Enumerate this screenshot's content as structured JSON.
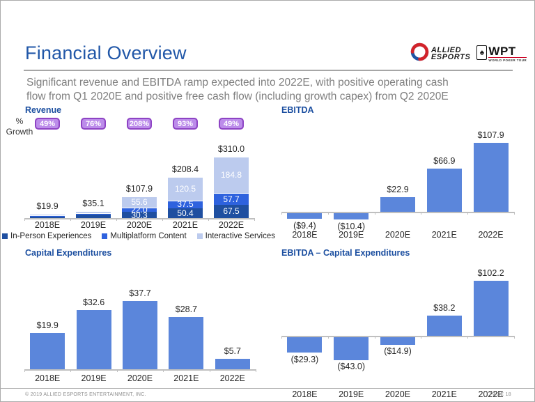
{
  "header": {
    "title": "Financial Overview",
    "subtitle_lines": [
      "Significant revenue and EBITDA ramp expected into 2022E, with positive operating cash",
      "flow from Q1 2020E and positive free cash flow (including growth capex) from Q2 2020E"
    ],
    "logos": {
      "allied_line1": "ALLIED",
      "allied_line2": "ESPORTS",
      "wpt": "WPT",
      "wpt_sub": "WORLD POKER TOUR",
      "spade_icon": "♠"
    }
  },
  "footer": {
    "copyright": "© 2019 ALLIED ESPORTS ENTERTAINMENT, INC.",
    "page": "PAGE 18"
  },
  "colors": {
    "accent_blue_title": "#2157a8",
    "chart_title_blue": "#1c4fa0",
    "single_bar": "#5b86db",
    "stack_dark": "#1f4fa0",
    "stack_mid": "#2e62de",
    "stack_light": "#bccbee",
    "badge_fill": "#bc8cea",
    "badge_border": "#8e44c4",
    "axis_gray": "#bfbfbf"
  },
  "chart_data": [
    {
      "id": "revenue",
      "type": "bar",
      "stacked": true,
      "title": "Revenue",
      "growth_label": "% Growth",
      "growth_badges": [
        "49%",
        "76%",
        "208%",
        "93%",
        "49%"
      ],
      "categories": [
        "2018E",
        "2019E",
        "2020E",
        "2021E",
        "2022E"
      ],
      "series": [
        {
          "name": "In-Person Experiences",
          "color": "#1f4fa0",
          "values": [
            11.9,
            17.6,
            30.3,
            50.4,
            67.5
          ]
        },
        {
          "name": "Multiplatform Content",
          "color": "#2e62de",
          "values": [
            1.0,
            7.0,
            22.0,
            37.5,
            57.7
          ]
        },
        {
          "name": "Interactive Services",
          "color": "#bccbee",
          "values": [
            7.0,
            10.5,
            55.6,
            120.5,
            184.8
          ]
        }
      ],
      "totals": [
        19.9,
        35.1,
        107.9,
        208.4,
        310.0
      ],
      "total_labels": [
        "$19.9",
        "$35.1",
        "$107.9",
        "$208.4",
        "$310.0"
      ],
      "segment_labels_visible": [
        false,
        false,
        true,
        true,
        true
      ],
      "legend_position": "bottom",
      "ylim": [
        0,
        310
      ]
    },
    {
      "id": "ebitda",
      "type": "bar",
      "stacked": false,
      "title": "EBITDA",
      "categories": [
        "2018E",
        "2019E",
        "2020E",
        "2021E",
        "2022E"
      ],
      "values": [
        -9.4,
        -10.4,
        22.9,
        66.9,
        107.9
      ],
      "value_labels": [
        "($9.4)",
        "($10.4)",
        "$22.9",
        "$66.9",
        "$107.9"
      ],
      "bar_color": "#5b86db",
      "ylim": [
        -15,
        110
      ]
    },
    {
      "id": "capex",
      "type": "bar",
      "stacked": false,
      "title": "Capital Expenditures",
      "categories": [
        "2018E",
        "2019E",
        "2020E",
        "2021E",
        "2022E"
      ],
      "values": [
        19.9,
        32.6,
        37.7,
        28.7,
        5.7
      ],
      "value_labels": [
        "$19.9",
        "$32.6",
        "$37.7",
        "$28.7",
        "$5.7"
      ],
      "bar_color": "#5b86db",
      "ylim": [
        0,
        40
      ]
    },
    {
      "id": "ebitda_capex",
      "type": "bar",
      "stacked": false,
      "title": "EBITDA – Capital Expenditures",
      "categories": [
        "2018E",
        "2019E",
        "2020E",
        "2021E",
        "2022E"
      ],
      "values": [
        -29.3,
        -43.0,
        -14.9,
        38.2,
        102.2
      ],
      "value_labels": [
        "($29.3)",
        "($43.0)",
        "($14.9)",
        "$38.2",
        "$102.2"
      ],
      "bar_color": "#5b86db",
      "ylim": [
        -45,
        105
      ]
    }
  ]
}
